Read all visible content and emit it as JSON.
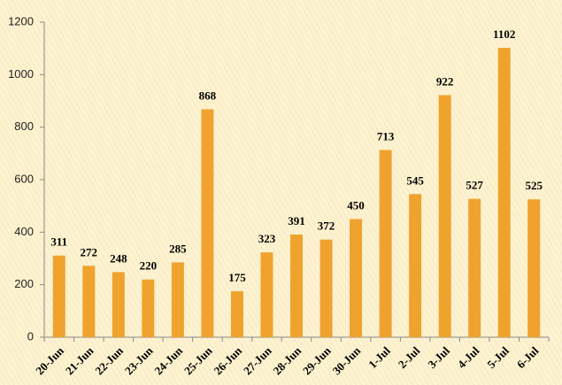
{
  "chart_data": {
    "type": "bar",
    "categories": [
      "20-Jun",
      "21-Jun",
      "22-Jun",
      "23-Jun",
      "24-Jun",
      "25-Jun",
      "26-Jun",
      "27-Jun",
      "28-Jun",
      "29-Jun",
      "30-Jun",
      "1-Jul",
      "2-Jul",
      "3-Jul",
      "4-Jul",
      "5-Jul",
      "6-Jul"
    ],
    "values": [
      311,
      272,
      248,
      220,
      285,
      868,
      175,
      323,
      391,
      372,
      450,
      713,
      545,
      922,
      527,
      1102,
      525
    ],
    "color": "#f0a22e",
    "ylim": [
      0,
      1200
    ],
    "yticks": [
      0,
      200,
      400,
      600,
      800,
      1000,
      1200
    ]
  }
}
